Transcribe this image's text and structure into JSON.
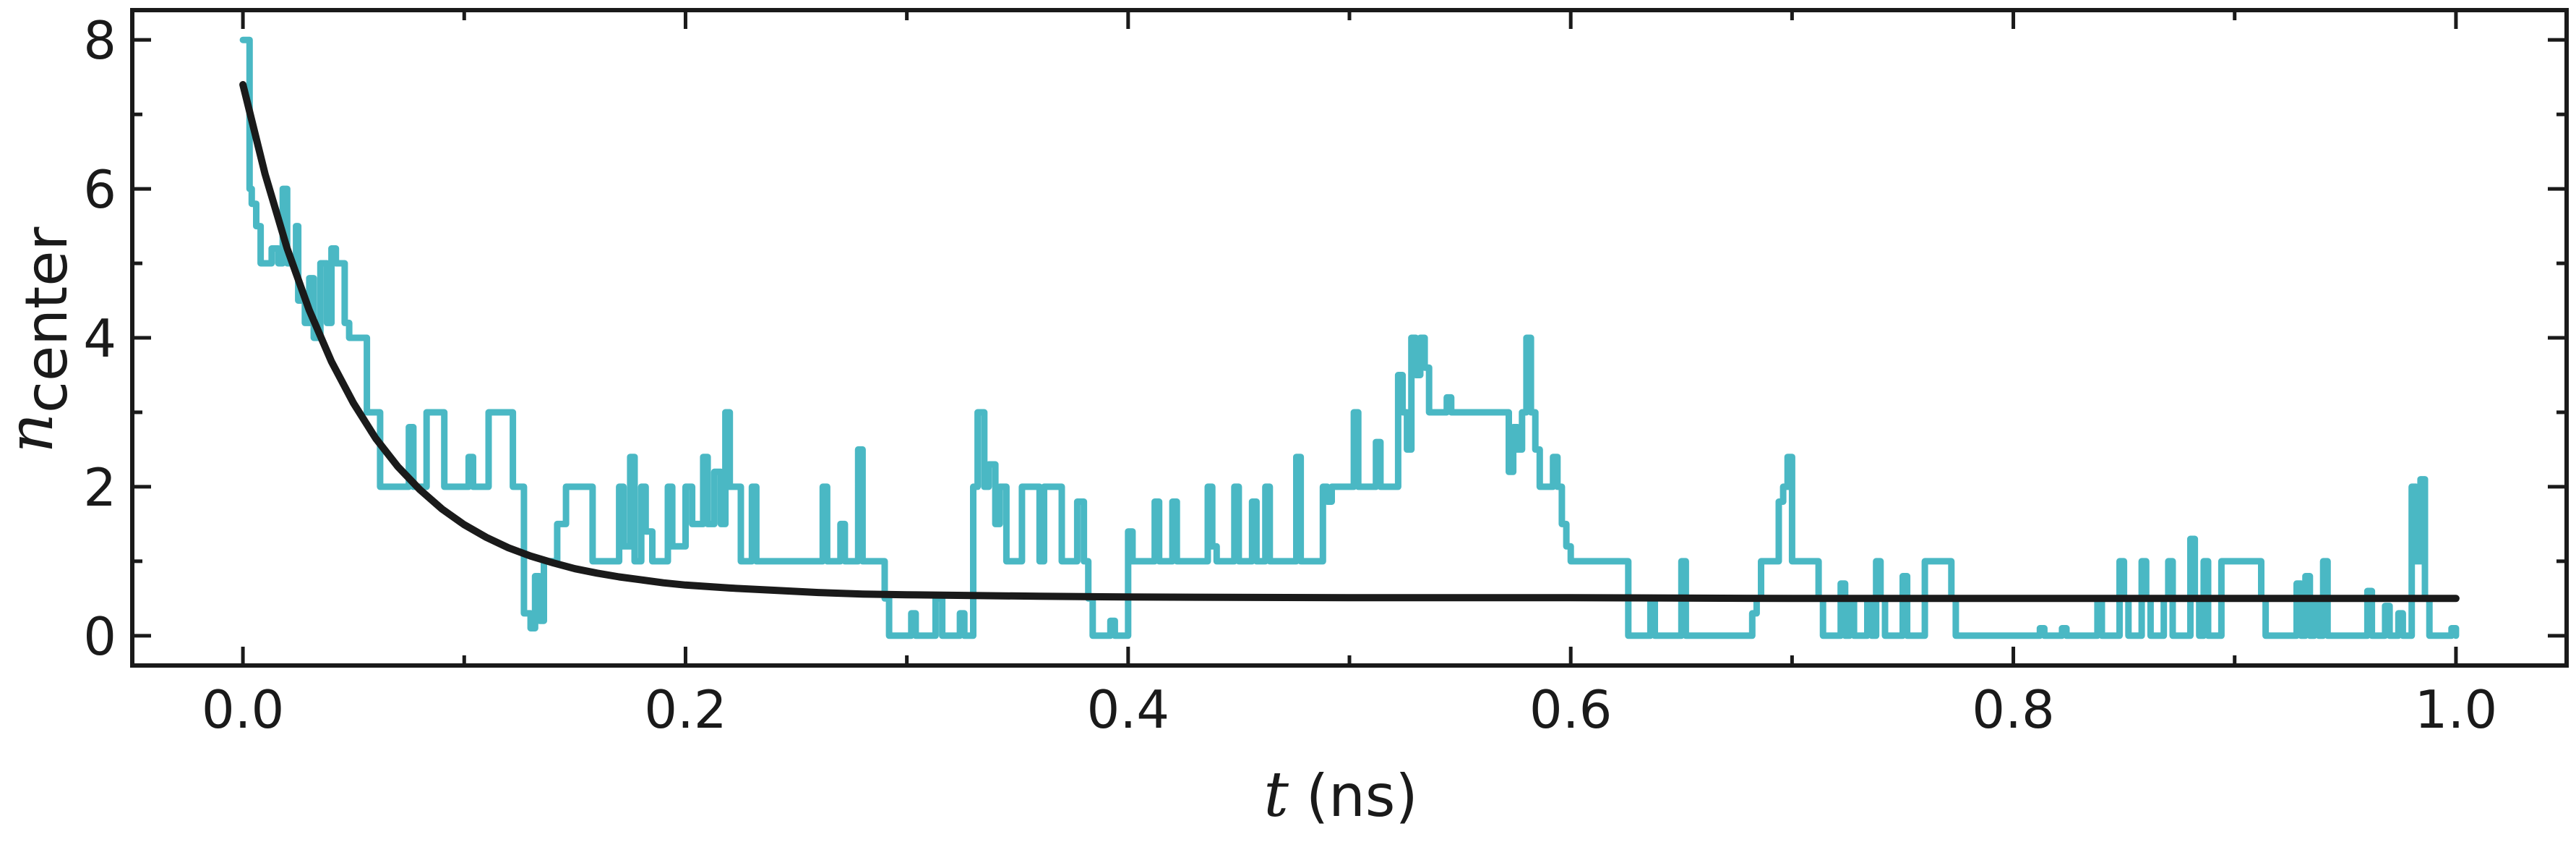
{
  "chart_data": {
    "type": "line",
    "xlabel": {
      "symbol": "t",
      "unit": "(ns)"
    },
    "ylabel": {
      "symbol": "n",
      "subscript": "center"
    },
    "xlim": [
      -0.05,
      1.05
    ],
    "ylim": [
      -0.4,
      8.4
    ],
    "x_ticks": [
      0.0,
      0.2,
      0.4,
      0.6,
      0.8,
      1.0
    ],
    "x_tick_labels": [
      "0.0",
      "0.2",
      "0.4",
      "0.6",
      "0.8",
      "1.0"
    ],
    "x_minor_ticks": [
      0.1,
      0.3,
      0.5,
      0.7,
      0.9
    ],
    "y_ticks": [
      0,
      2,
      4,
      6,
      8
    ],
    "y_tick_labels": [
      "0",
      "2",
      "4",
      "6",
      "8"
    ],
    "y_minor_ticks": [
      1,
      3,
      5,
      7
    ],
    "grid": false,
    "series": [
      {
        "style": "step",
        "color": "#4ab8c4",
        "points": [
          [
            0,
            8
          ],
          [
            0.003,
            6
          ],
          [
            0.004,
            5.8
          ],
          [
            0.006,
            5.5
          ],
          [
            0.008,
            5
          ],
          [
            0.012,
            5
          ],
          [
            0.013,
            5.2
          ],
          [
            0.016,
            5
          ],
          [
            0.018,
            6
          ],
          [
            0.02,
            5
          ],
          [
            0.024,
            5.5
          ],
          [
            0.025,
            4.5
          ],
          [
            0.028,
            4.2
          ],
          [
            0.03,
            4.8
          ],
          [
            0.032,
            4
          ],
          [
            0.035,
            5
          ],
          [
            0.038,
            4.2
          ],
          [
            0.04,
            5.2
          ],
          [
            0.042,
            5
          ],
          [
            0.046,
            4.2
          ],
          [
            0.048,
            4
          ],
          [
            0.055,
            4
          ],
          [
            0.056,
            3
          ],
          [
            0.06,
            3
          ],
          [
            0.062,
            2
          ],
          [
            0.072,
            2
          ],
          [
            0.075,
            2.8
          ],
          [
            0.077,
            2
          ],
          [
            0.082,
            2
          ],
          [
            0.083,
            3
          ],
          [
            0.09,
            3
          ],
          [
            0.091,
            2
          ],
          [
            0.1,
            2
          ],
          [
            0.102,
            2.4
          ],
          [
            0.104,
            2
          ],
          [
            0.11,
            2
          ],
          [
            0.111,
            3
          ],
          [
            0.12,
            3
          ],
          [
            0.122,
            2
          ],
          [
            0.126,
            2
          ],
          [
            0.127,
            0.3
          ],
          [
            0.13,
            0.1
          ],
          [
            0.132,
            0.8
          ],
          [
            0.134,
            0.2
          ],
          [
            0.136,
            1
          ],
          [
            0.14,
            1
          ],
          [
            0.142,
            1.5
          ],
          [
            0.146,
            2
          ],
          [
            0.156,
            2
          ],
          [
            0.158,
            1
          ],
          [
            0.168,
            1
          ],
          [
            0.17,
            2
          ],
          [
            0.172,
            1.2
          ],
          [
            0.175,
            2.4
          ],
          [
            0.177,
            1
          ],
          [
            0.18,
            2
          ],
          [
            0.182,
            1.4
          ],
          [
            0.185,
            1
          ],
          [
            0.19,
            1
          ],
          [
            0.192,
            2
          ],
          [
            0.194,
            1.2
          ],
          [
            0.198,
            1.2
          ],
          [
            0.2,
            2
          ],
          [
            0.203,
            1.5
          ],
          [
            0.206,
            1.5
          ],
          [
            0.208,
            2.4
          ],
          [
            0.21,
            1.5
          ],
          [
            0.213,
            2.2
          ],
          [
            0.216,
            1.5
          ],
          [
            0.218,
            3
          ],
          [
            0.22,
            2
          ],
          [
            0.225,
            1
          ],
          [
            0.228,
            1
          ],
          [
            0.23,
            2
          ],
          [
            0.232,
            1
          ],
          [
            0.26,
            1
          ],
          [
            0.262,
            2
          ],
          [
            0.264,
            1
          ],
          [
            0.268,
            1
          ],
          [
            0.27,
            1.5
          ],
          [
            0.272,
            1
          ],
          [
            0.276,
            1
          ],
          [
            0.278,
            2.5
          ],
          [
            0.28,
            1
          ],
          [
            0.288,
            1
          ],
          [
            0.29,
            0.5
          ],
          [
            0.292,
            0
          ],
          [
            0.3,
            0
          ],
          [
            0.302,
            0.3
          ],
          [
            0.304,
            0
          ],
          [
            0.312,
            0
          ],
          [
            0.313,
            0.5
          ],
          [
            0.316,
            0
          ],
          [
            0.322,
            0
          ],
          [
            0.324,
            0.3
          ],
          [
            0.326,
            0
          ],
          [
            0.328,
            0
          ],
          [
            0.33,
            2
          ],
          [
            0.332,
            3
          ],
          [
            0.335,
            2
          ],
          [
            0.337,
            2.3
          ],
          [
            0.34,
            1.5
          ],
          [
            0.342,
            2
          ],
          [
            0.345,
            1
          ],
          [
            0.35,
            1
          ],
          [
            0.352,
            2
          ],
          [
            0.358,
            2
          ],
          [
            0.36,
            1
          ],
          [
            0.362,
            2
          ],
          [
            0.368,
            2
          ],
          [
            0.37,
            1
          ],
          [
            0.375,
            1
          ],
          [
            0.377,
            1.8
          ],
          [
            0.38,
            1
          ],
          [
            0.382,
            0.5
          ],
          [
            0.384,
            0
          ],
          [
            0.39,
            0
          ],
          [
            0.392,
            0.2
          ],
          [
            0.394,
            0
          ],
          [
            0.398,
            0
          ],
          [
            0.4,
            1.4
          ],
          [
            0.402,
            1
          ],
          [
            0.41,
            1
          ],
          [
            0.412,
            1.8
          ],
          [
            0.414,
            1
          ],
          [
            0.418,
            1
          ],
          [
            0.42,
            1.8
          ],
          [
            0.422,
            1
          ],
          [
            0.434,
            1
          ],
          [
            0.436,
            2
          ],
          [
            0.438,
            1.2
          ],
          [
            0.44,
            1
          ],
          [
            0.446,
            1
          ],
          [
            0.448,
            2
          ],
          [
            0.45,
            1
          ],
          [
            0.454,
            1
          ],
          [
            0.456,
            1.8
          ],
          [
            0.458,
            1
          ],
          [
            0.46,
            1
          ],
          [
            0.462,
            2
          ],
          [
            0.464,
            1
          ],
          [
            0.474,
            1
          ],
          [
            0.476,
            2.4
          ],
          [
            0.478,
            1
          ],
          [
            0.486,
            1
          ],
          [
            0.488,
            2
          ],
          [
            0.49,
            1.8
          ],
          [
            0.492,
            2
          ],
          [
            0.5,
            2
          ],
          [
            0.502,
            3
          ],
          [
            0.504,
            2
          ],
          [
            0.51,
            2
          ],
          [
            0.512,
            2.6
          ],
          [
            0.514,
            2
          ],
          [
            0.52,
            2
          ],
          [
            0.522,
            3.5
          ],
          [
            0.524,
            3
          ],
          [
            0.526,
            2.5
          ],
          [
            0.528,
            4
          ],
          [
            0.53,
            3.5
          ],
          [
            0.532,
            4
          ],
          [
            0.534,
            3.6
          ],
          [
            0.536,
            3
          ],
          [
            0.542,
            3
          ],
          [
            0.544,
            3.2
          ],
          [
            0.546,
            3
          ],
          [
            0.57,
            3
          ],
          [
            0.572,
            2.2
          ],
          [
            0.574,
            2.8
          ],
          [
            0.576,
            2.5
          ],
          [
            0.578,
            3
          ],
          [
            0.58,
            4
          ],
          [
            0.582,
            3
          ],
          [
            0.584,
            2.5
          ],
          [
            0.586,
            2
          ],
          [
            0.59,
            2
          ],
          [
            0.592,
            2.4
          ],
          [
            0.594,
            2
          ],
          [
            0.596,
            1.5
          ],
          [
            0.598,
            1.2
          ],
          [
            0.6,
            1
          ],
          [
            0.624,
            1
          ],
          [
            0.626,
            0
          ],
          [
            0.634,
            0
          ],
          [
            0.636,
            0.5
          ],
          [
            0.638,
            0
          ],
          [
            0.648,
            0
          ],
          [
            0.65,
            1
          ],
          [
            0.652,
            0
          ],
          [
            0.68,
            0
          ],
          [
            0.682,
            0.3
          ],
          [
            0.684,
            0.5
          ],
          [
            0.686,
            1
          ],
          [
            0.692,
            1
          ],
          [
            0.694,
            1.8
          ],
          [
            0.696,
            2
          ],
          [
            0.698,
            2.4
          ],
          [
            0.7,
            1
          ],
          [
            0.71,
            1
          ],
          [
            0.712,
            0.5
          ],
          [
            0.714,
            0
          ],
          [
            0.72,
            0
          ],
          [
            0.722,
            0.7
          ],
          [
            0.724,
            0
          ],
          [
            0.726,
            0.5
          ],
          [
            0.728,
            0
          ],
          [
            0.732,
            0
          ],
          [
            0.734,
            0.5
          ],
          [
            0.736,
            0
          ],
          [
            0.738,
            1
          ],
          [
            0.74,
            0.5
          ],
          [
            0.742,
            0
          ],
          [
            0.748,
            0
          ],
          [
            0.75,
            0.8
          ],
          [
            0.752,
            0
          ],
          [
            0.758,
            0
          ],
          [
            0.76,
            1
          ],
          [
            0.77,
            1
          ],
          [
            0.772,
            0.5
          ],
          [
            0.774,
            0
          ],
          [
            0.81,
            0
          ],
          [
            0.812,
            0.1
          ],
          [
            0.814,
            0
          ],
          [
            0.82,
            0
          ],
          [
            0.822,
            0.1
          ],
          [
            0.824,
            0
          ],
          [
            0.836,
            0
          ],
          [
            0.838,
            0.5
          ],
          [
            0.84,
            0
          ],
          [
            0.846,
            0
          ],
          [
            0.848,
            1
          ],
          [
            0.85,
            0.5
          ],
          [
            0.852,
            0
          ],
          [
            0.856,
            0
          ],
          [
            0.858,
            1
          ],
          [
            0.86,
            0.5
          ],
          [
            0.862,
            0
          ],
          [
            0.866,
            0
          ],
          [
            0.868,
            0.5
          ],
          [
            0.87,
            1
          ],
          [
            0.872,
            0
          ],
          [
            0.878,
            0
          ],
          [
            0.88,
            1.3
          ],
          [
            0.882,
            0.5
          ],
          [
            0.884,
            0
          ],
          [
            0.886,
            1
          ],
          [
            0.888,
            0
          ],
          [
            0.892,
            0
          ],
          [
            0.894,
            1
          ],
          [
            0.91,
            1
          ],
          [
            0.912,
            0.5
          ],
          [
            0.914,
            0
          ],
          [
            0.926,
            0
          ],
          [
            0.928,
            0.7
          ],
          [
            0.93,
            0
          ],
          [
            0.932,
            0.8
          ],
          [
            0.934,
            0
          ],
          [
            0.936,
            0.5
          ],
          [
            0.938,
            0
          ],
          [
            0.94,
            1
          ],
          [
            0.942,
            0
          ],
          [
            0.958,
            0
          ],
          [
            0.96,
            0.6
          ],
          [
            0.962,
            0
          ],
          [
            0.966,
            0
          ],
          [
            0.968,
            0.4
          ],
          [
            0.97,
            0
          ],
          [
            0.972,
            0
          ],
          [
            0.974,
            0.3
          ],
          [
            0.976,
            0
          ],
          [
            0.978,
            0
          ],
          [
            0.98,
            2
          ],
          [
            0.982,
            1
          ],
          [
            0.984,
            2.1
          ],
          [
            0.986,
            0.5
          ],
          [
            0.988,
            0
          ],
          [
            0.996,
            0
          ],
          [
            0.998,
            0.1
          ],
          [
            1.0,
            0
          ]
        ]
      },
      {
        "style": "smooth",
        "color": "#1a1a1a",
        "points": [
          [
            0,
            7.4
          ],
          [
            0.01,
            6.2
          ],
          [
            0.02,
            5.2
          ],
          [
            0.03,
            4.37
          ],
          [
            0.04,
            3.68
          ],
          [
            0.05,
            3.12
          ],
          [
            0.06,
            2.65
          ],
          [
            0.07,
            2.27
          ],
          [
            0.08,
            1.96
          ],
          [
            0.09,
            1.7
          ],
          [
            0.1,
            1.49
          ],
          [
            0.11,
            1.32
          ],
          [
            0.12,
            1.18
          ],
          [
            0.13,
            1.07
          ],
          [
            0.14,
            0.98
          ],
          [
            0.15,
            0.9
          ],
          [
            0.16,
            0.84
          ],
          [
            0.17,
            0.79
          ],
          [
            0.18,
            0.75
          ],
          [
            0.19,
            0.71
          ],
          [
            0.2,
            0.68
          ],
          [
            0.22,
            0.64
          ],
          [
            0.24,
            0.61
          ],
          [
            0.26,
            0.58
          ],
          [
            0.28,
            0.56
          ],
          [
            0.3,
            0.55
          ],
          [
            0.33,
            0.54
          ],
          [
            0.36,
            0.53
          ],
          [
            0.4,
            0.52
          ],
          [
            0.5,
            0.51
          ],
          [
            0.6,
            0.51
          ],
          [
            0.7,
            0.5
          ],
          [
            0.8,
            0.5
          ],
          [
            0.9,
            0.5
          ],
          [
            1.0,
            0.5
          ]
        ]
      }
    ]
  }
}
